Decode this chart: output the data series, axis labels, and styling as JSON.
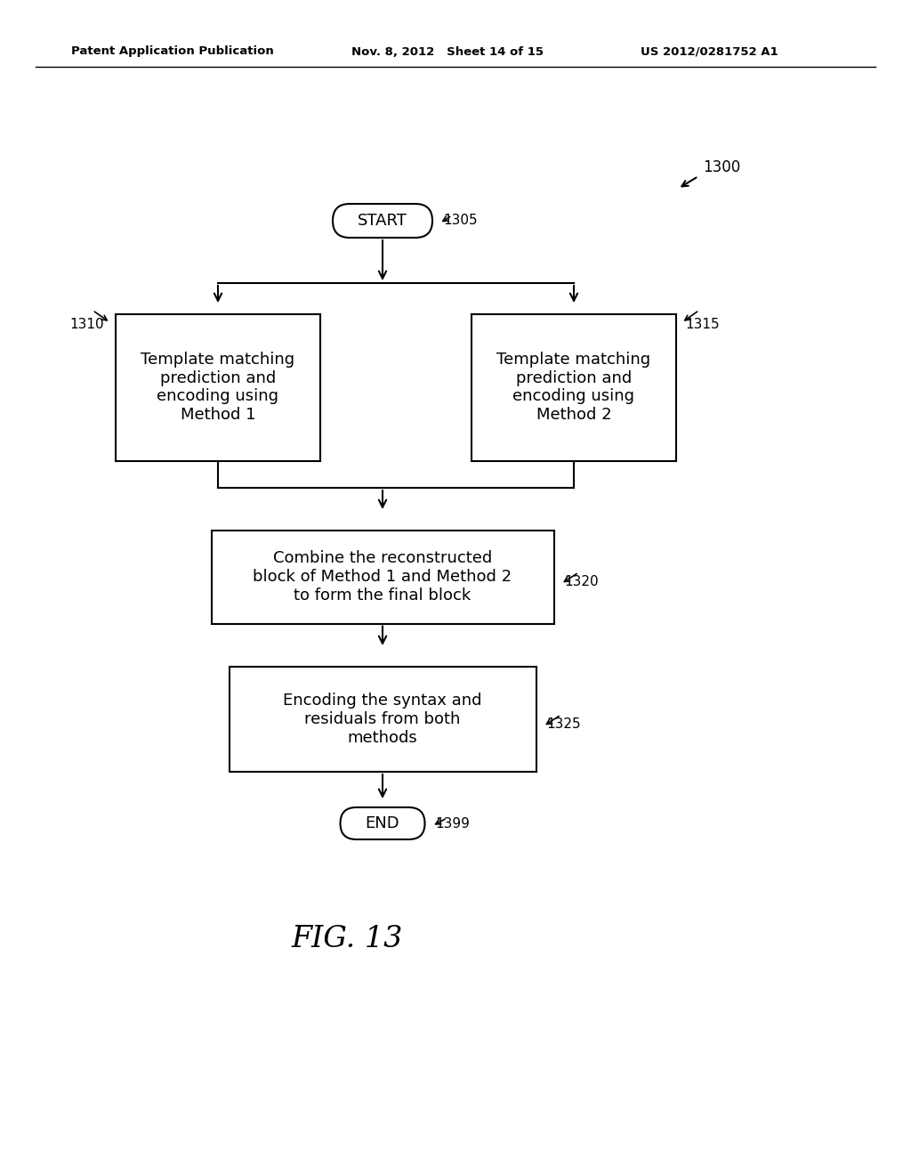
{
  "bg_color": "#ffffff",
  "header_left": "Patent Application Publication",
  "header_mid": "Nov. 8, 2012   Sheet 14 of 15",
  "header_right": "US 2012/0281752 A1",
  "fig_label": "FIG. 13",
  "start_label": "START",
  "end_label": "END",
  "box1_text": "Template matching\nprediction and\nencoding using\nMethod 1",
  "box2_text": "Template matching\nprediction and\nencoding using\nMethod 2",
  "box3_text": "Combine the reconstructed\nblock of Method 1 and Method 2\nto form the final block",
  "box4_text": "Encoding the syntax and\nresiduals from both\nmethods",
  "ref_1300": "1300",
  "ref_1305": "1305",
  "ref_1310": "1310",
  "ref_1315": "1315",
  "ref_1320": "1320",
  "ref_1325": "1325",
  "ref_1399": "1399"
}
